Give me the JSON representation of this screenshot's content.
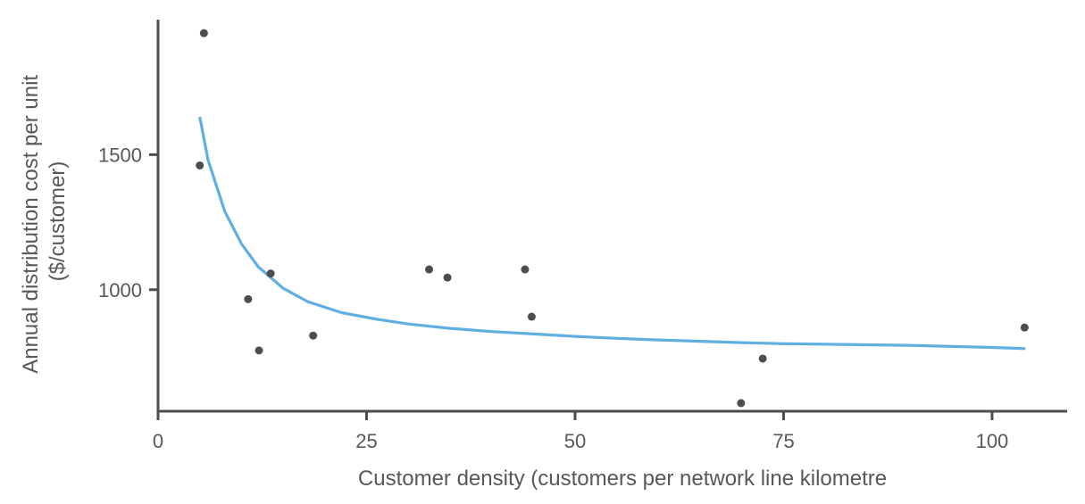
{
  "chart_data": {
    "type": "scatter",
    "title": "",
    "xlabel": "Customer density (customers per network line kilometre",
    "ylabel_lines": [
      "Annual distribution cost per unit",
      "($/customer)"
    ],
    "xlim": [
      0,
      109
    ],
    "ylim": [
      550,
      2000
    ],
    "x_ticks": [
      0,
      25,
      50,
      75,
      100
    ],
    "x_tick_labels": [
      "0",
      "25",
      "50",
      "75",
      "100"
    ],
    "y_ticks": [
      1000,
      1500
    ],
    "y_tick_labels": [
      "1000",
      "1500"
    ],
    "grid": false,
    "legend": "none",
    "series": [
      {
        "kind": "points",
        "color": "#4d4d4f",
        "points": [
          {
            "x": 5.5,
            "y": 1950
          },
          {
            "x": 5.0,
            "y": 1460
          },
          {
            "x": 10.8,
            "y": 965
          },
          {
            "x": 12.1,
            "y": 775
          },
          {
            "x": 13.5,
            "y": 1060
          },
          {
            "x": 18.6,
            "y": 830
          },
          {
            "x": 32.5,
            "y": 1075
          },
          {
            "x": 34.7,
            "y": 1045
          },
          {
            "x": 44.0,
            "y": 1075
          },
          {
            "x": 44.8,
            "y": 900
          },
          {
            "x": 69.9,
            "y": 580
          },
          {
            "x": 72.5,
            "y": 745
          },
          {
            "x": 103.9,
            "y": 860
          }
        ]
      },
      {
        "kind": "trend_curve",
        "color": "#5fafe0",
        "points": [
          {
            "x": 5.0,
            "y": 1640
          },
          {
            "x": 6.0,
            "y": 1480
          },
          {
            "x": 8.0,
            "y": 1290
          },
          {
            "x": 10.0,
            "y": 1170
          },
          {
            "x": 12.0,
            "y": 1085
          },
          {
            "x": 15.0,
            "y": 1005
          },
          {
            "x": 18.0,
            "y": 955
          },
          {
            "x": 22.0,
            "y": 915
          },
          {
            "x": 26.0,
            "y": 892
          },
          {
            "x": 30.0,
            "y": 873
          },
          {
            "x": 35.0,
            "y": 857
          },
          {
            "x": 40.0,
            "y": 845
          },
          {
            "x": 45.0,
            "y": 836
          },
          {
            "x": 50.0,
            "y": 827
          },
          {
            "x": 55.0,
            "y": 820
          },
          {
            "x": 60.0,
            "y": 814
          },
          {
            "x": 65.0,
            "y": 809
          },
          {
            "x": 70.0,
            "y": 804
          },
          {
            "x": 75.0,
            "y": 800
          },
          {
            "x": 80.0,
            "y": 798
          },
          {
            "x": 85.0,
            "y": 796
          },
          {
            "x": 90.0,
            "y": 794
          },
          {
            "x": 95.0,
            "y": 790
          },
          {
            "x": 100.0,
            "y": 786
          },
          {
            "x": 104.0,
            "y": 782
          }
        ]
      }
    ]
  }
}
